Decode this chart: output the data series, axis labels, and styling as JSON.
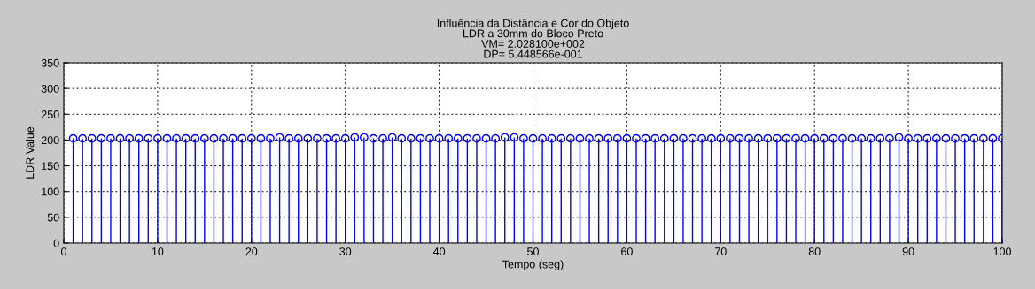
{
  "chart_data": {
    "type": "lollipop",
    "title": "Influência da Distância e Cor do Objeto\nLDR a 30mm do Bloco Preto\nVM= 2.028100e+002\nDP= 5.448566e-001",
    "xlabel": "Tempo (seg)",
    "ylabel": "LDR Value",
    "x": [
      1,
      2,
      3,
      4,
      5,
      6,
      7,
      8,
      9,
      10,
      11,
      12,
      13,
      14,
      15,
      16,
      17,
      18,
      19,
      20,
      21,
      22,
      23,
      24,
      25,
      26,
      27,
      28,
      29,
      30,
      31,
      32,
      33,
      34,
      35,
      36,
      37,
      38,
      39,
      40,
      41,
      42,
      43,
      44,
      45,
      46,
      47,
      48,
      49,
      50,
      51,
      52,
      53,
      54,
      55,
      56,
      57,
      58,
      59,
      60,
      61,
      62,
      63,
      64,
      65,
      66,
      67,
      68,
      69,
      70,
      71,
      72,
      73,
      74,
      75,
      76,
      77,
      78,
      79,
      80,
      81,
      82,
      83,
      84,
      85,
      86,
      87,
      88,
      89,
      90,
      91,
      92,
      93,
      94,
      95,
      96,
      97,
      98,
      99,
      100
    ],
    "series": [
      {
        "color": "#0000ff",
        "values": [
          203,
          203,
          203,
          203,
          203,
          203,
          203,
          203,
          203,
          203,
          203,
          203,
          203,
          203,
          203,
          203,
          203,
          203,
          203,
          203,
          203,
          203,
          205,
          203,
          203,
          203,
          203,
          203,
          203,
          203,
          205,
          205,
          203,
          203,
          205,
          203,
          203,
          203,
          203,
          203,
          203,
          203,
          203,
          203,
          203,
          203,
          205,
          205,
          203,
          203,
          203,
          203,
          203,
          203,
          203,
          203,
          203,
          203,
          203,
          203,
          203,
          203,
          203,
          203,
          203,
          203,
          203,
          203,
          203,
          203,
          203,
          203,
          203,
          203,
          203,
          203,
          203,
          203,
          203,
          203,
          203,
          203,
          203,
          203,
          203,
          203,
          203,
          203,
          205,
          203,
          203,
          203,
          203,
          203,
          203,
          203,
          203,
          203,
          203,
          203
        ]
      }
    ],
    "xlim": [
      0,
      100
    ],
    "xticks": [
      0,
      10,
      20,
      30,
      40,
      50,
      60,
      70,
      80,
      90,
      100
    ],
    "ylim": [
      0,
      350
    ],
    "yticks": [
      0,
      50,
      100,
      150,
      200,
      250,
      300,
      350
    ],
    "grid": true,
    "marker": "circle"
  }
}
